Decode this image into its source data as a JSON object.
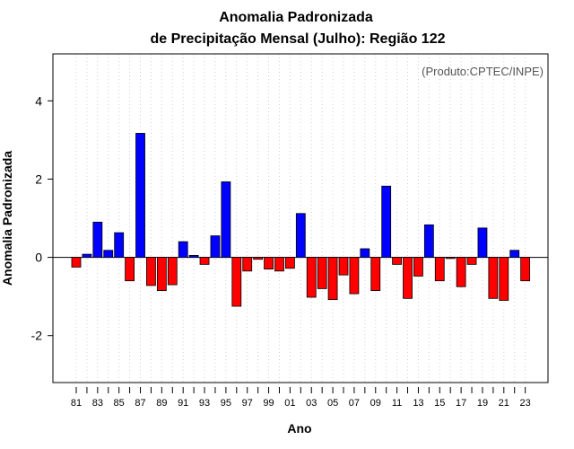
{
  "chart_data": {
    "type": "bar",
    "title": [
      "Anomalia Padronizada",
      "de Precipitação Mensal (Julho): Região 122"
    ],
    "xlabel": "Ano",
    "ylabel": "Anomalia Padronizada",
    "credit": "(Produto:CPTEC/INPE)",
    "ylim": [
      -3.2,
      5.2
    ],
    "yticks": [
      -2,
      0,
      2,
      4
    ],
    "grid": "vertical-dotted",
    "categories": [
      "1981",
      "1982",
      "1983",
      "1984",
      "1985",
      "1986",
      "1987",
      "1988",
      "1989",
      "1990",
      "1991",
      "1992",
      "1993",
      "1994",
      "1995",
      "1996",
      "1997",
      "1998",
      "1999",
      "2000",
      "2001",
      "2002",
      "2003",
      "2004",
      "2005",
      "2006",
      "2007",
      "2008",
      "2009",
      "2010",
      "2011",
      "2012",
      "2013",
      "2014",
      "2015",
      "2016",
      "2017",
      "2018",
      "2019",
      "2020",
      "2021",
      "2022",
      "2023"
    ],
    "xtick_labels": [
      "81",
      "83",
      "85",
      "87",
      "89",
      "91",
      "93",
      "95",
      "97",
      "99",
      "01",
      "03",
      "05",
      "07",
      "09",
      "11",
      "13",
      "15",
      "17",
      "19",
      "21",
      "23"
    ],
    "values": [
      -0.25,
      0.08,
      0.9,
      0.18,
      0.63,
      -0.6,
      3.17,
      -0.72,
      -0.85,
      -0.7,
      0.4,
      0.05,
      -0.18,
      0.55,
      1.93,
      -1.25,
      -0.35,
      -0.05,
      -0.3,
      -0.35,
      -0.28,
      1.12,
      -1.02,
      -0.8,
      -1.08,
      -0.45,
      -0.93,
      0.22,
      -0.85,
      1.82,
      -0.18,
      -1.05,
      -0.48,
      0.83,
      -0.6,
      -0.03,
      -0.75,
      -0.18,
      0.75,
      -1.05,
      -1.1,
      0.18,
      -0.6
    ],
    "colors": {
      "positive": "#0000ff",
      "negative": "#ff0000",
      "zero_line": "#000000",
      "grid": "#d0d0d0"
    }
  }
}
